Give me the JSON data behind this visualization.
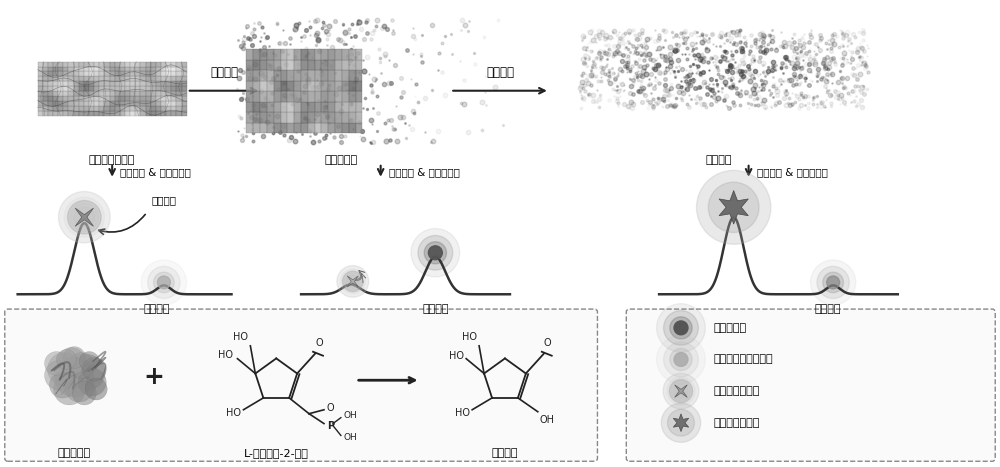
{
  "bg_color": "#ffffff",
  "arrow_color": "#222222",
  "text_color": "#000000",
  "label_arrow1": "抗坏血酸",
  "label_arrow2": "抗坏血酸",
  "label_nano1": "二氧化锰纳米片",
  "label_nano2": "部分被还原",
  "label_nano3": "完全还原",
  "label_add1": "邻苯二胺 & 红色量子点",
  "label_add2": "邻苯二胺 & 红色量子点",
  "label_add3": "邻苯二胺 & 红色量子点",
  "label_fluor1": "黄色荧光",
  "label_fluor2": "红色荧光",
  "label_fluor3": "紫色荧光",
  "label_inner": "内率效应",
  "label_enzyme": "碱性磷酸酶",
  "label_substrate": "L-抗坏血酸-2-磷酸",
  "label_product": "抗坏血酸",
  "legend_items": [
    "红色量子点",
    "被猝灭的红色量子点",
    "邻苯二胺氧化物",
    "邻苯二胺还原物"
  ]
}
